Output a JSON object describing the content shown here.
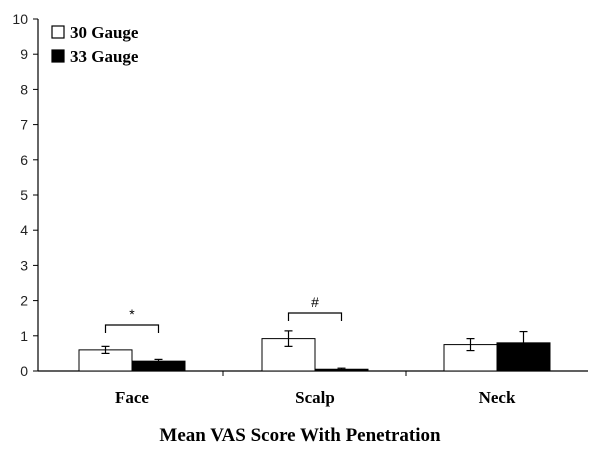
{
  "chart_data": {
    "type": "bar",
    "title": "Mean VAS Score With Penetration",
    "xlabel": "",
    "ylabel": "",
    "ylim": [
      0,
      10
    ],
    "yticks": [
      0,
      1,
      2,
      3,
      4,
      5,
      6,
      7,
      8,
      9,
      10
    ],
    "grid": false,
    "legend_position": "top-left",
    "categories": [
      "Face",
      "Scalp",
      "Neck"
    ],
    "series": [
      {
        "name": "30 Gauge",
        "color": "#ffffff",
        "values": [
          0.6,
          0.92,
          0.75
        ],
        "errors": [
          0.1,
          0.22,
          0.17
        ]
      },
      {
        "name": "33 Gauge",
        "color": "#000000",
        "values": [
          0.28,
          0.05,
          0.8
        ],
        "errors": [
          0.05,
          0.03,
          0.32
        ]
      }
    ],
    "annotations": [
      {
        "category": "Face",
        "text": "*"
      },
      {
        "category": "Scalp",
        "text": "#"
      }
    ]
  }
}
